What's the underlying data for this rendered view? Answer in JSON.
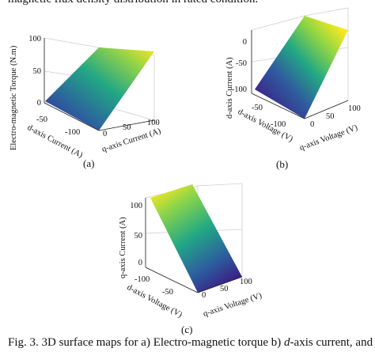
{
  "figure": {
    "top_caption": "magnetic flux density distribution in rated condition.",
    "caption_prefix": "Fig. 3. 3D surface maps for a) Electro-magnetic torque b) ",
    "caption_italic": "d",
    "caption_suffix": "-axis current, and",
    "colors": {
      "low": "#3b1f86",
      "mid": "#22a884",
      "high": "#f9e721"
    }
  },
  "panels": [
    {
      "label": "(a)",
      "chart_data": {
        "type": "surface",
        "zlabel": "Electro-magnetic Torque (N.m)",
        "xlabel": "d-axis Current (A)",
        "ylabel": "q-axis Current (A)",
        "zticks": [
          "0",
          "50",
          "100"
        ],
        "xticks": [
          "-50",
          "-100"
        ],
        "yticks": [
          "0",
          "50",
          "100"
        ],
        "zlim": [
          0,
          100
        ],
        "xlim": [
          -120,
          0
        ],
        "ylim": [
          0,
          120
        ]
      }
    },
    {
      "label": "(b)",
      "chart_data": {
        "type": "surface",
        "zlabel": "d-axis Current (A)",
        "xlabel": "d-axis Voltage (V)",
        "ylabel": "q-axis Voltage (V)",
        "zticks": [
          "0",
          "-50",
          "-100"
        ],
        "xticks": [
          "-50",
          "-100"
        ],
        "yticks": [
          "0",
          "50",
          "100"
        ],
        "zlim": [
          -120,
          10
        ],
        "xlim": [
          -120,
          0
        ],
        "ylim": [
          0,
          120
        ]
      }
    },
    {
      "label": "(c)",
      "chart_data": {
        "type": "surface",
        "zlabel": "q-axis Current (A)",
        "xlabel": "d-axis Voltage (V)",
        "ylabel": "q-axis Voltage (V)",
        "zticks": [
          "100",
          "50",
          "0"
        ],
        "xticks": [
          "-50",
          "-100"
        ],
        "yticks": [
          "0",
          "50",
          "100"
        ],
        "zlim": [
          0,
          120
        ],
        "xlim": [
          -120,
          0
        ],
        "ylim": [
          0,
          120
        ]
      }
    }
  ]
}
